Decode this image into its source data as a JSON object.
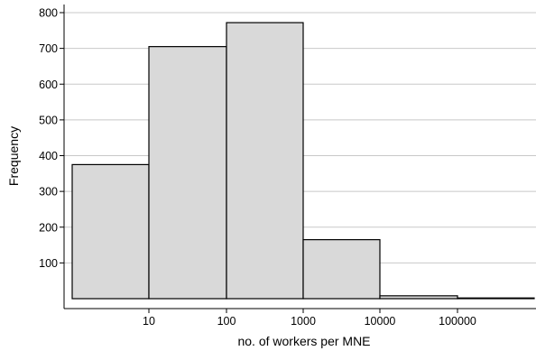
{
  "chart_data": {
    "type": "bar",
    "title": "",
    "xlabel": "no. of workers per MNE",
    "ylabel": "Frequency",
    "x_scale": "log",
    "xlim": [
      1,
      1000000
    ],
    "ylim": [
      0,
      800
    ],
    "y_ticks": [
      100,
      200,
      300,
      400,
      500,
      600,
      700,
      800
    ],
    "x_ticks": [
      10,
      100,
      1000,
      10000,
      100000
    ],
    "x_tick_labels": [
      "10",
      "100",
      "1000",
      "10000",
      "100000"
    ],
    "grid": "horizontal",
    "bins": [
      {
        "from": 1,
        "to": 10,
        "value": 375
      },
      {
        "from": 10,
        "to": 100,
        "value": 705
      },
      {
        "from": 100,
        "to": 1000,
        "value": 772
      },
      {
        "from": 1000,
        "to": 10000,
        "value": 165
      },
      {
        "from": 10000,
        "to": 100000,
        "value": 8
      },
      {
        "from": 100000,
        "to": 1000000,
        "value": 2
      }
    ]
  }
}
